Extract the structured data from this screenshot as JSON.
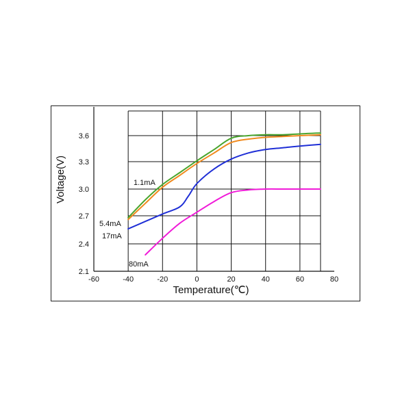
{
  "chart_data": {
    "type": "line",
    "xlabel": "Temperature(℃)",
    "ylabel": "Voltage(V)",
    "xlim": [
      -60,
      80
    ],
    "ylim": [
      2.1,
      3.8
    ],
    "x_ticks": [
      "-60",
      "-40",
      "-20",
      "0",
      "20",
      "40",
      "60",
      "80"
    ],
    "y_ticks": [
      "2.1",
      "2.4",
      "2.7",
      "3.0",
      "3.3",
      "3.6"
    ],
    "grid": true,
    "series": [
      {
        "name": "1.1mA",
        "color": "#4aa52e",
        "x": [
          -40,
          -30,
          -20,
          -10,
          0,
          10,
          20,
          30,
          40,
          50,
          60,
          72
        ],
        "y": [
          2.68,
          2.88,
          3.05,
          3.18,
          3.31,
          3.44,
          3.57,
          3.6,
          3.61,
          3.61,
          3.62,
          3.63
        ]
      },
      {
        "name": "5.4mA",
        "color": "#f08a1e",
        "x": [
          -40,
          -30,
          -20,
          -10,
          0,
          10,
          20,
          30,
          40,
          50,
          60,
          72
        ],
        "y": [
          2.66,
          2.84,
          3.02,
          3.15,
          3.28,
          3.4,
          3.52,
          3.56,
          3.58,
          3.59,
          3.6,
          3.61
        ]
      },
      {
        "name": "17mA",
        "color": "#1f2fd6",
        "x": [
          -40,
          -30,
          -20,
          -10,
          -5,
          0,
          10,
          20,
          30,
          40,
          50,
          60,
          72
        ],
        "y": [
          2.56,
          2.64,
          2.72,
          2.8,
          2.92,
          3.06,
          3.22,
          3.33,
          3.4,
          3.44,
          3.46,
          3.48,
          3.5
        ]
      },
      {
        "name": "80mA",
        "color": "#f01ad8",
        "x": [
          -30,
          -20,
          -10,
          0,
          10,
          20,
          30,
          40,
          50,
          60,
          72
        ],
        "y": [
          2.28,
          2.46,
          2.62,
          2.74,
          2.86,
          2.96,
          2.99,
          3.0,
          3.0,
          3.0,
          3.0
        ]
      }
    ]
  }
}
